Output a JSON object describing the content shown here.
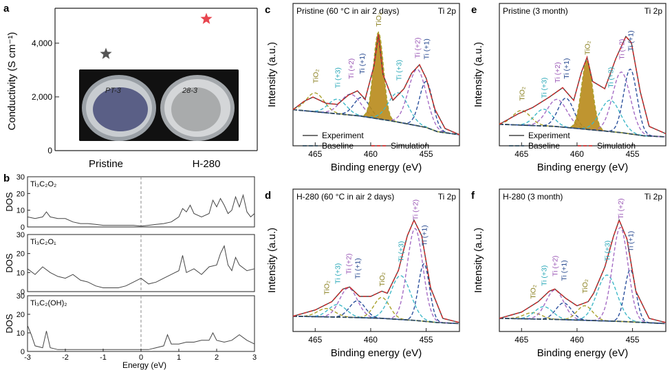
{
  "panels": {
    "a": {
      "label": "a",
      "ylabel": "Conductivity (S cm⁻¹)",
      "yticks": [
        "0",
        "2,000",
        "4,000"
      ],
      "categories": [
        "Pristine",
        "H-280"
      ],
      "photo_labels": [
        "PT-3",
        "28-3"
      ]
    },
    "b": {
      "label": "b",
      "ylabel": "DOS",
      "xlabel": "Energy (eV)",
      "xticks": [
        "-3",
        "-2",
        "-1",
        "0",
        "1",
        "2",
        "3"
      ],
      "subplots": [
        {
          "name": "Ti₃C₂O₂",
          "yticks": [
            "0",
            "10",
            "20",
            "30"
          ]
        },
        {
          "name": "Ti₃C₂O₁",
          "yticks": [
            "0",
            "10",
            "20",
            "30"
          ]
        },
        {
          "name": "Ti₃C₂(OH)₂",
          "yticks": [
            "0",
            "10",
            "20",
            "30"
          ]
        }
      ]
    },
    "c": {
      "label": "c",
      "title": "Pristine (60 °C in air 2 days)",
      "tag": "Ti 2p"
    },
    "d": {
      "label": "d",
      "title": "H-280  (60 °C in air 2 days)",
      "tag": "Ti 2p"
    },
    "e": {
      "label": "e",
      "title": "Pristine (3 month)",
      "tag": "Ti 2p"
    },
    "f": {
      "label": "f",
      "title": "H-280 (3 month)",
      "tag": "Ti 2p"
    },
    "xps_common": {
      "ylabel": "Intensity (a.u.)",
      "xlabel": "Binding energy (eV)",
      "xticks": [
        "465",
        "460",
        "455"
      ],
      "legend": {
        "experiment": "Experiment",
        "baseline": "Baseline",
        "simulation": "Simulation"
      },
      "peaks": {
        "tio2": "TiO₂",
        "ti3": "Ti (+3)",
        "ti2": "Ti (+2)",
        "ti1": "Ti (+1)"
      }
    }
  },
  "chart_data": [
    {
      "type": "scatter",
      "panel": "a",
      "categories": [
        "Pristine",
        "H-280"
      ],
      "values": [
        3600,
        4900
      ],
      "ylim": [
        0,
        5300
      ],
      "colors": [
        "#555555",
        "#e8454f"
      ],
      "ylabel": "Conductivity (S cm⁻¹)"
    },
    {
      "type": "line",
      "panel": "b",
      "xlim": [
        -3,
        3
      ],
      "ylim": [
        0,
        30
      ],
      "fermi_level": 0,
      "series": [
        {
          "name": "Ti₃C₂O₂",
          "x": [
            -3,
            -2.8,
            -2.6,
            -2.5,
            -2.4,
            -2.2,
            -2,
            -1.8,
            -1.6,
            -1.4,
            -1.2,
            -1,
            -0.8,
            -0.6,
            -0.4,
            -0.2,
            0,
            0.2,
            0.4,
            0.6,
            0.8,
            1,
            1.1,
            1.2,
            1.3,
            1.4,
            1.6,
            1.8,
            1.9,
            2,
            2.1,
            2.2,
            2.3,
            2.4,
            2.5,
            2.6,
            2.7,
            2.8,
            2.9,
            3
          ],
          "y": [
            6,
            5,
            6,
            9,
            6,
            5,
            5,
            3,
            2,
            2,
            1.5,
            1,
            1,
            1,
            1,
            1,
            0.5,
            1,
            1.5,
            2,
            3,
            6,
            11,
            9,
            13,
            8,
            6,
            8,
            16,
            12,
            17,
            13,
            8,
            10,
            18,
            12,
            19,
            9,
            6,
            8
          ]
        },
        {
          "name": "Ti₃C₂O₁",
          "x": [
            -3,
            -2.8,
            -2.6,
            -2.4,
            -2.2,
            -2,
            -1.8,
            -1.6,
            -1.4,
            -1.2,
            -1,
            -0.8,
            -0.6,
            -0.4,
            -0.2,
            0,
            0.2,
            0.4,
            0.6,
            0.8,
            1,
            1.1,
            1.2,
            1.4,
            1.6,
            1.8,
            2,
            2.1,
            2.2,
            2.3,
            2.4,
            2.5,
            2.6,
            2.8,
            3
          ],
          "y": [
            12,
            9,
            13,
            10,
            8,
            7,
            9,
            6,
            5,
            3,
            2,
            2,
            2,
            3,
            5,
            7,
            4,
            5,
            7,
            9,
            11,
            19,
            10,
            12,
            9,
            13,
            14,
            20,
            24,
            14,
            11,
            18,
            14,
            11,
            12
          ]
        },
        {
          "name": "Ti₃C₂(OH)₂",
          "x": [
            -3,
            -2.9,
            -2.8,
            -2.6,
            -2.5,
            -2.4,
            -2.2,
            -2,
            -1.8,
            -1.6,
            -1.4,
            -1.2,
            -1,
            -0.8,
            -0.6,
            -0.4,
            -0.2,
            0,
            0.2,
            0.4,
            0.6,
            0.7,
            0.8,
            1,
            1.2,
            1.4,
            1.6,
            1.8,
            1.9,
            2,
            2.2,
            2.4,
            2.6,
            2.8,
            3
          ],
          "y": [
            14,
            9,
            3,
            2,
            11,
            2,
            1,
            1,
            1,
            1,
            1,
            1,
            1,
            1,
            1,
            1,
            1,
            1,
            1,
            2,
            3,
            9,
            4,
            4,
            5,
            5,
            6,
            6,
            10,
            6,
            5,
            6,
            9,
            6,
            4
          ]
        }
      ]
    },
    {
      "type": "line",
      "panel": "c",
      "xlim": [
        467,
        452
      ],
      "series": [
        {
          "name": "Experiment",
          "x": [
            467,
            466,
            465.2,
            464,
            463,
            462,
            461.2,
            460.5,
            459.7,
            459.3,
            458.9,
            458,
            457,
            456.3,
            455.6,
            455,
            454.2,
            453.3,
            452
          ],
          "y": [
            0.28,
            0.36,
            0.4,
            0.34,
            0.33,
            0.42,
            0.46,
            0.38,
            0.7,
            1.0,
            0.62,
            0.37,
            0.48,
            0.63,
            0.71,
            0.58,
            0.28,
            0.1,
            0.04
          ]
        },
        {
          "name": "Baseline",
          "x": [
            467,
            464,
            461,
            458,
            456,
            455,
            454,
            452
          ],
          "y": [
            0.28,
            0.25,
            0.22,
            0.17,
            0.13,
            0.11,
            0.07,
            0.04
          ]
        }
      ],
      "peaks": [
        {
          "name": "TiO₂",
          "x": 465.0
        },
        {
          "name": "Ti (+3)",
          "x": 463.0
        },
        {
          "name": "Ti (+2)",
          "x": 461.8
        },
        {
          "name": "Ti (+1)",
          "x": 460.8
        },
        {
          "name": "TiO₂",
          "x": 459.3
        },
        {
          "name": "Ti (+3)",
          "x": 457.5
        },
        {
          "name": "Ti (+2)",
          "x": 455.8
        },
        {
          "name": "Ti (+1)",
          "x": 455.0
        }
      ]
    },
    {
      "type": "line",
      "panel": "d",
      "xlim": [
        467,
        452
      ],
      "series": [
        {
          "name": "Experiment",
          "x": [
            467,
            465,
            463.5,
            462.5,
            461.9,
            461,
            460,
            459,
            458.5,
            457.5,
            456.7,
            456.1,
            455.4,
            454.6,
            453.5,
            452
          ],
          "y": [
            0.08,
            0.14,
            0.22,
            0.34,
            0.36,
            0.27,
            0.27,
            0.32,
            0.3,
            0.52,
            0.85,
            1.0,
            0.85,
            0.35,
            0.06,
            0.02
          ]
        },
        {
          "name": "Baseline",
          "x": [
            467,
            462,
            459,
            456,
            454,
            452
          ],
          "y": [
            0.08,
            0.07,
            0.06,
            0.04,
            0.02,
            0.01
          ]
        }
      ]
    },
    {
      "type": "line",
      "panel": "e",
      "xlim": [
        467,
        452
      ],
      "series": [
        {
          "name": "Experiment",
          "x": [
            467,
            465.3,
            464,
            462.5,
            461.3,
            460.3,
            459.6,
            459.1,
            458.6,
            457.5,
            456.5,
            455.6,
            455.1,
            454.3,
            453.5,
            452
          ],
          "y": [
            0.14,
            0.24,
            0.3,
            0.4,
            0.49,
            0.37,
            0.64,
            0.78,
            0.55,
            0.48,
            0.77,
            0.98,
            0.92,
            0.45,
            0.12,
            0.05
          ]
        },
        {
          "name": "Baseline",
          "x": [
            467,
            462,
            459,
            456,
            454,
            452
          ],
          "y": [
            0.14,
            0.12,
            0.09,
            0.06,
            0.03,
            0.02
          ]
        }
      ]
    },
    {
      "type": "line",
      "panel": "f",
      "xlim": [
        467,
        452
      ],
      "series": [
        {
          "name": "Experiment",
          "x": [
            467,
            465,
            463.5,
            462.5,
            462,
            461,
            460,
            459,
            458.5,
            457.5,
            456.7,
            456.2,
            455.5,
            454.7,
            453.5,
            452
          ],
          "y": [
            0.06,
            0.12,
            0.22,
            0.32,
            0.34,
            0.25,
            0.18,
            0.22,
            0.3,
            0.55,
            0.85,
            1.0,
            0.82,
            0.32,
            0.06,
            0.02
          ]
        },
        {
          "name": "Baseline",
          "x": [
            467,
            462,
            459,
            456,
            454,
            452
          ],
          "y": [
            0.06,
            0.05,
            0.04,
            0.03,
            0.02,
            0.01
          ]
        }
      ]
    }
  ]
}
